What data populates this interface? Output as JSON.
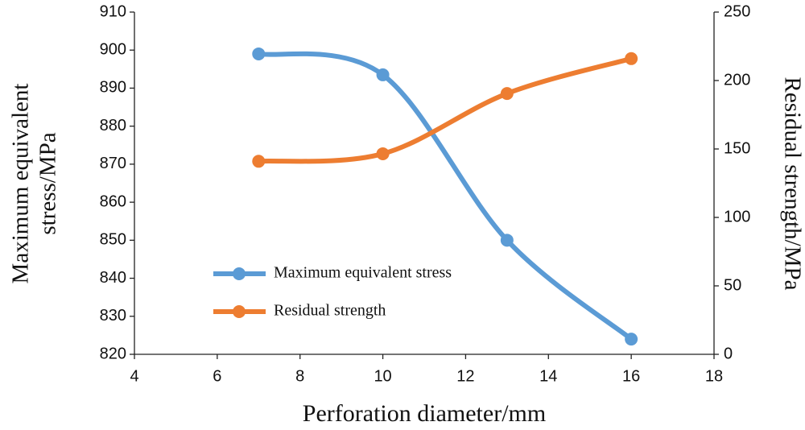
{
  "chart_data": {
    "type": "line",
    "xlabel": "Perforation diameter/mm",
    "ylabel": [
      "Maximum equivalent",
      "stress/MPa"
    ],
    "y2label": "Residual strength/MPa",
    "x": [
      7,
      10,
      13,
      16
    ],
    "series": [
      {
        "name": "Maximum equivalent stress",
        "color": "#5b9bd5",
        "values": [
          899,
          893.5,
          850,
          824
        ]
      },
      {
        "name": "Residual strength",
        "color": "#ed7d31",
        "axis": "y2",
        "values": [
          141,
          146.5,
          190.5,
          216
        ]
      }
    ],
    "xlim": [
      4,
      18
    ],
    "xticks": [
      4,
      6,
      8,
      10,
      12,
      14,
      16,
      18
    ],
    "ylim": [
      820,
      910
    ],
    "yticks": [
      820,
      830,
      840,
      850,
      860,
      870,
      880,
      890,
      900,
      910
    ],
    "y2lim": [
      0,
      250
    ],
    "y2ticks": [
      0,
      50,
      100,
      150,
      200,
      250
    ],
    "smooth": true,
    "grid": false,
    "legend": "lower left"
  }
}
